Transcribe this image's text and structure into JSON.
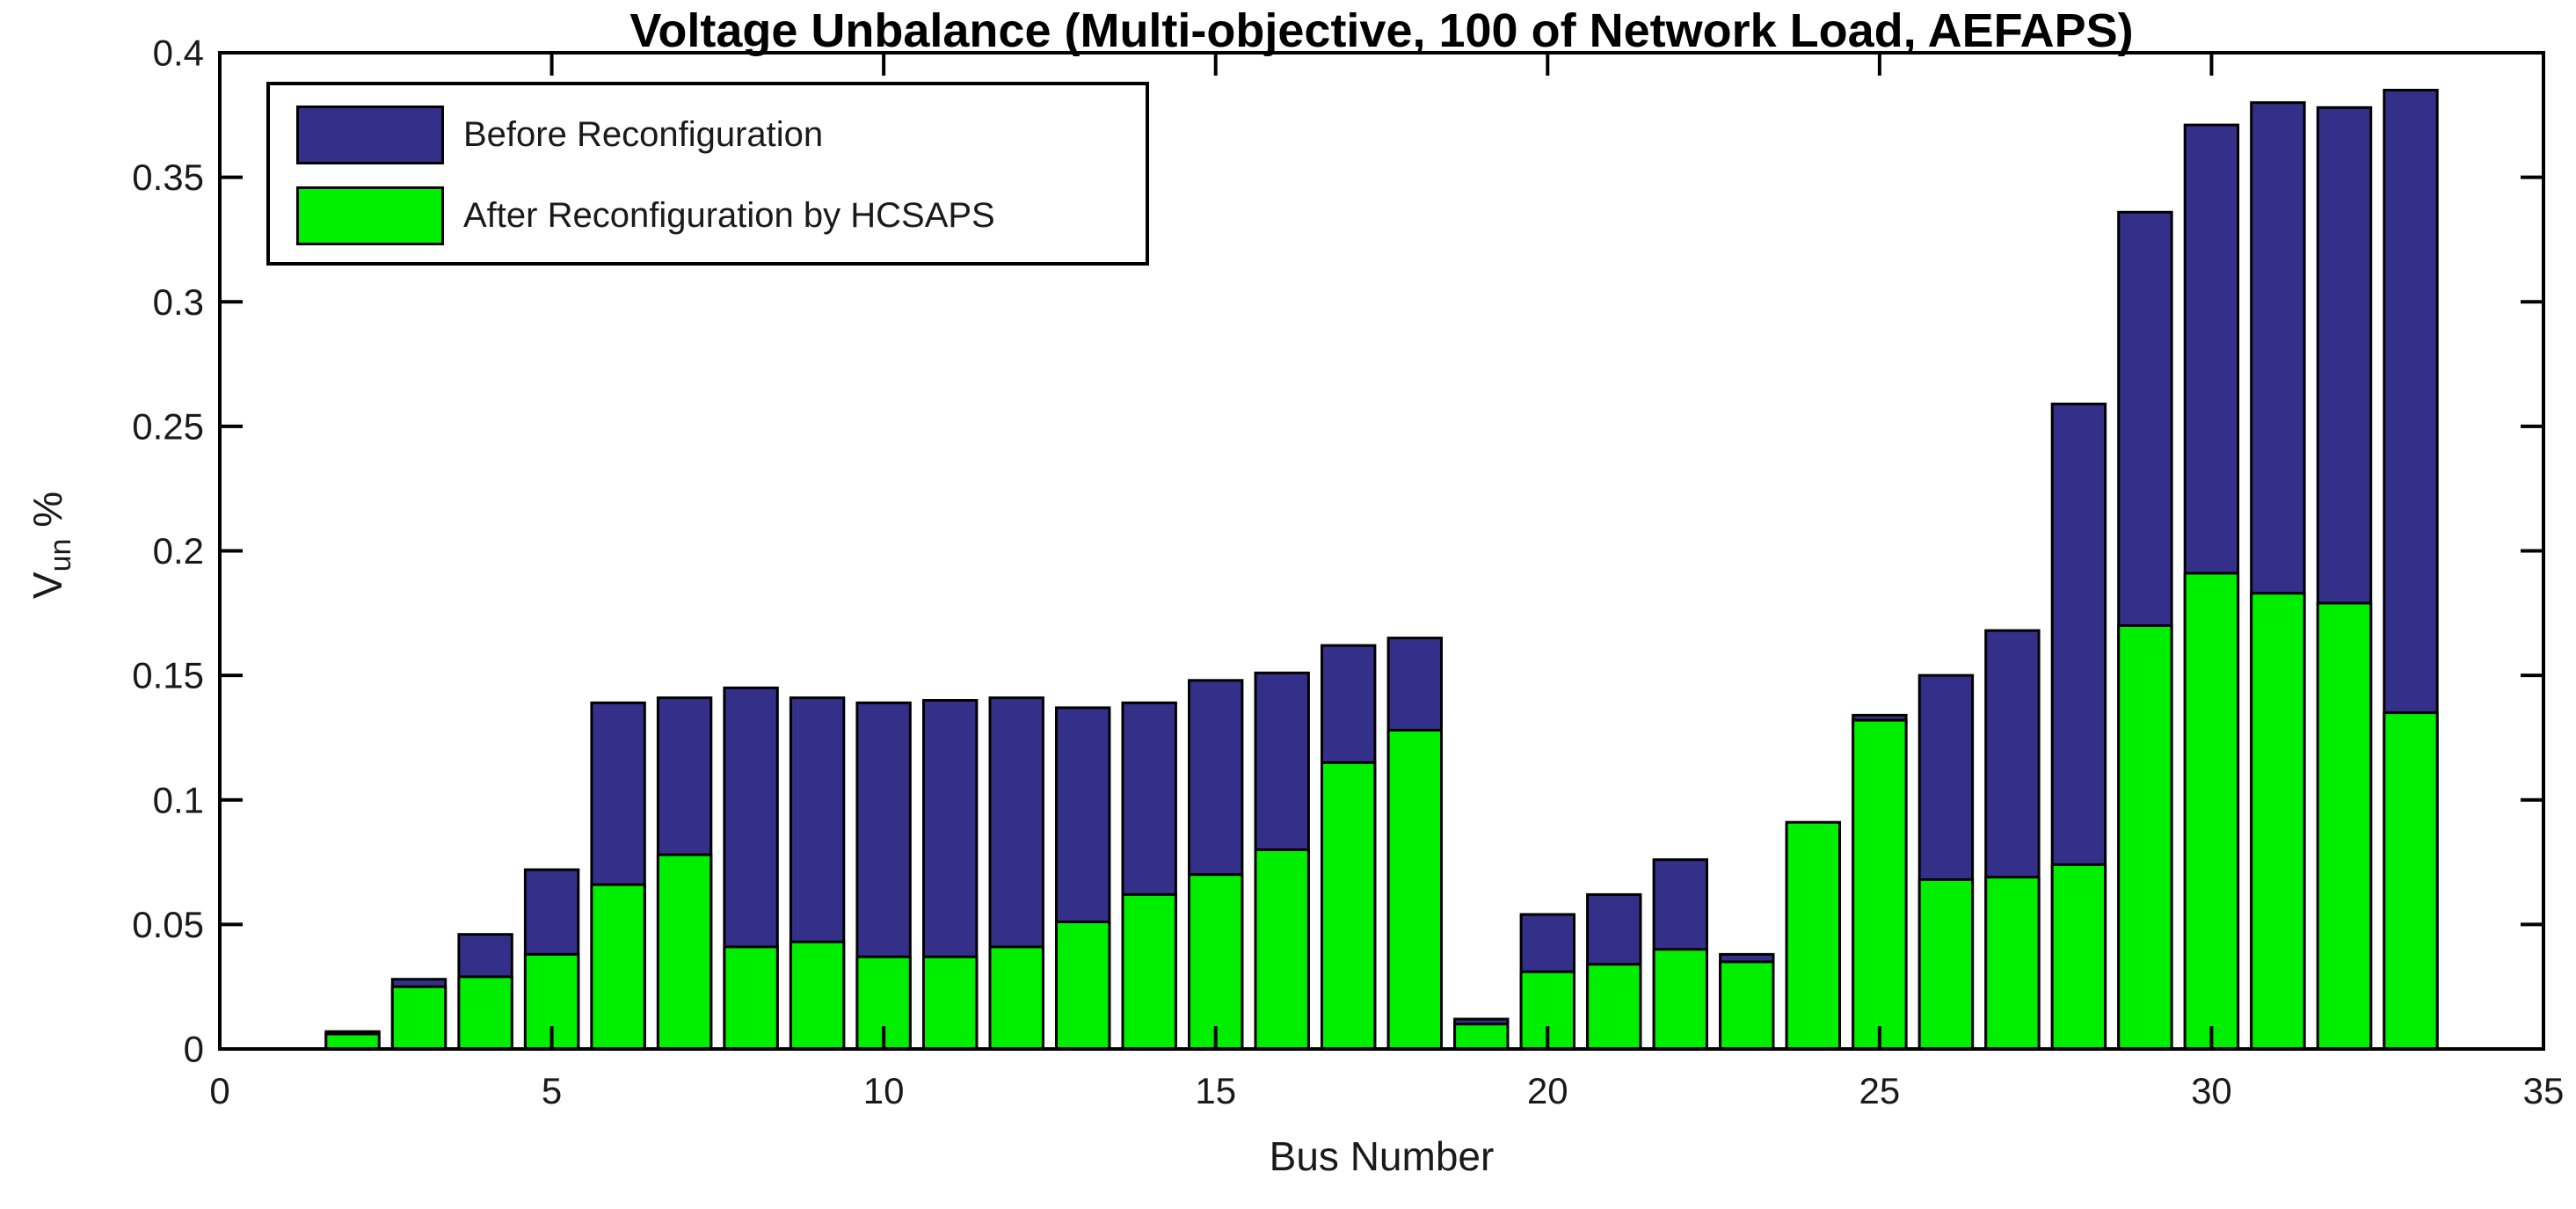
{
  "title": "Voltage Unbalance (Multi-objective, 100 of Network Load, AEFAPS)",
  "axes": {
    "x_label": "Bus Number",
    "y_label_base": "V",
    "y_label_sub": "un",
    "y_label_suffix": " %"
  },
  "colors": {
    "before_bar": "#34308A",
    "after_bar": "#00EE00",
    "bar_edge": "#000000",
    "axis": "#000000",
    "background": "#FFFFFF"
  },
  "chart_data": {
    "type": "bar",
    "overlay": true,
    "title": "Voltage Unbalance (Multi-objective, 100 of Network Load, AEFAPS)",
    "xlabel": "Bus Number",
    "ylabel": "V_un %",
    "xlim": [
      0,
      35
    ],
    "ylim": [
      0,
      0.4
    ],
    "grid": false,
    "legend_position": "northwest",
    "xticks": [
      0,
      5,
      10,
      15,
      20,
      25,
      30,
      35
    ],
    "xtick_labels": [
      "0",
      "5",
      "10",
      "15",
      "20",
      "25",
      "30",
      "35"
    ],
    "yticks": [
      0,
      0.05,
      0.1,
      0.15,
      0.2,
      0.25,
      0.3,
      0.35,
      0.4
    ],
    "ytick_labels": [
      "0",
      "0.05",
      "0.1",
      "0.15",
      "0.2",
      "0.25",
      "0.3",
      "0.35",
      "0.4"
    ],
    "categories": [
      2,
      3,
      4,
      5,
      6,
      7,
      8,
      9,
      10,
      11,
      12,
      13,
      14,
      15,
      16,
      17,
      18,
      19,
      20,
      21,
      22,
      23,
      24,
      25,
      26,
      27,
      28,
      29,
      30,
      31,
      32,
      33
    ],
    "series": [
      {
        "name": "Before Reconfiguration",
        "color": "#34308A",
        "values": [
          0.007,
          0.028,
          0.046,
          0.072,
          0.139,
          0.141,
          0.145,
          0.141,
          0.139,
          0.14,
          0.141,
          0.137,
          0.139,
          0.148,
          0.151,
          0.162,
          0.165,
          0.012,
          0.054,
          0.062,
          0.076,
          0.038,
          0.09,
          0.134,
          0.15,
          0.168,
          0.259,
          0.336,
          0.371,
          0.38,
          0.378,
          0.385
        ]
      },
      {
        "name": "After Reconfiguration by HCSAPS",
        "color": "#00EE00",
        "values": [
          0.006,
          0.025,
          0.029,
          0.038,
          0.066,
          0.078,
          0.041,
          0.043,
          0.037,
          0.037,
          0.041,
          0.051,
          0.062,
          0.07,
          0.08,
          0.115,
          0.128,
          0.01,
          0.031,
          0.034,
          0.04,
          0.035,
          0.091,
          0.132,
          0.068,
          0.069,
          0.074,
          0.17,
          0.191,
          0.183,
          0.179,
          0.135
        ]
      }
    ]
  }
}
